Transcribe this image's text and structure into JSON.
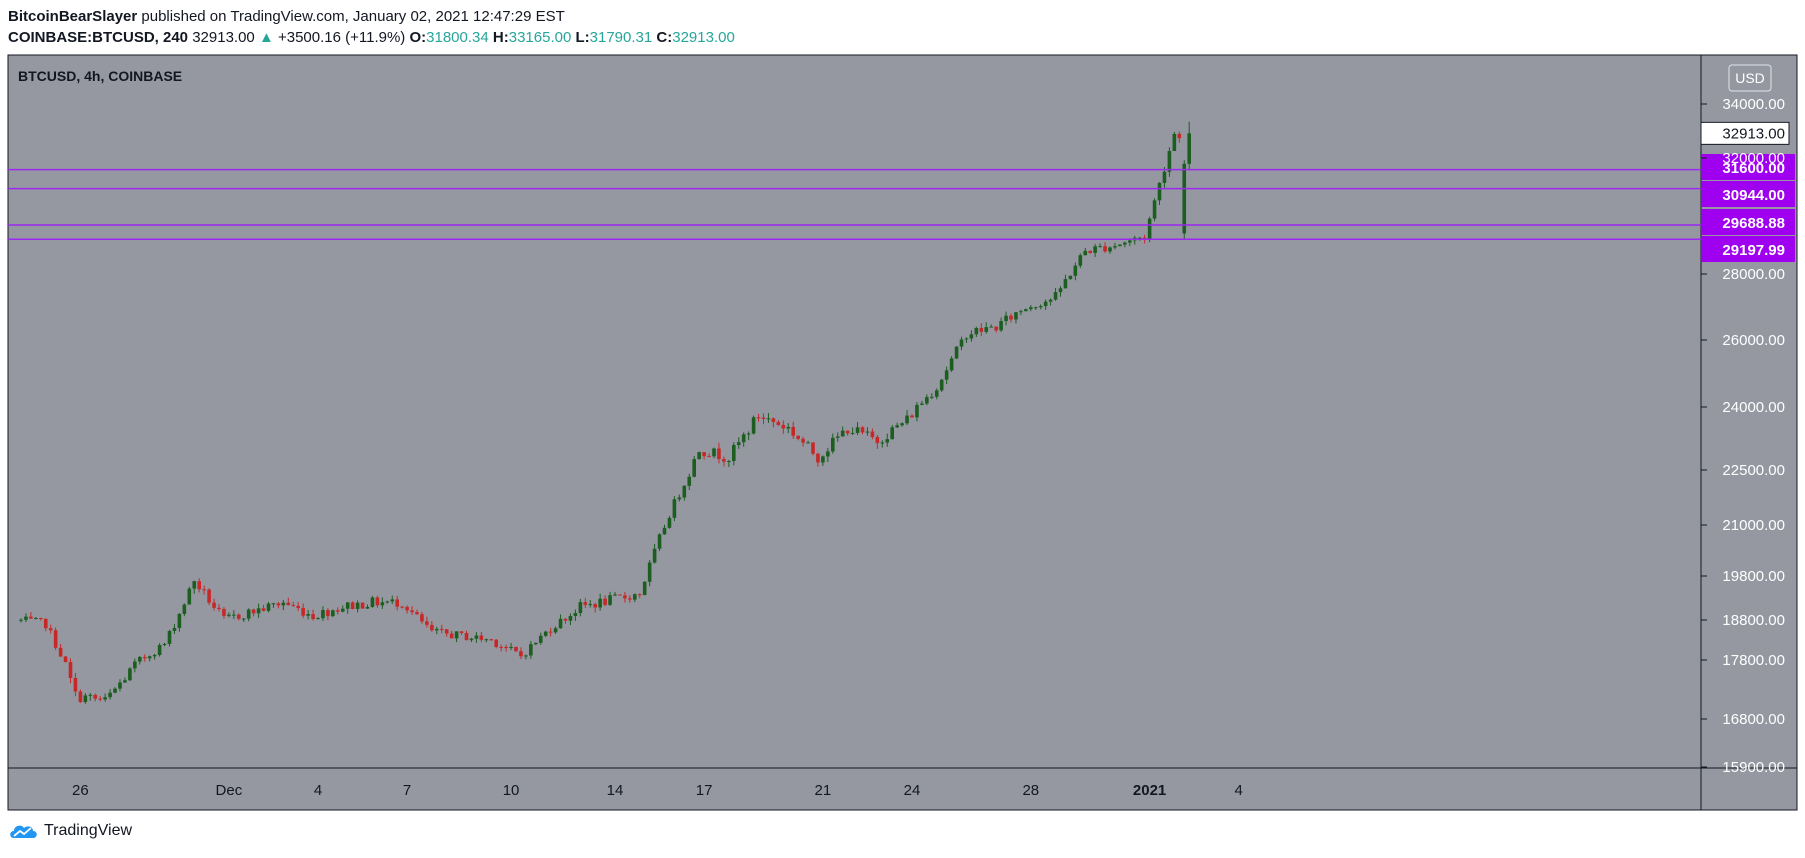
{
  "header": {
    "author": "BitcoinBearSlayer",
    "published_text": "published on TradingView.com, January 02, 2021 12:47:29 EST",
    "symbol": "COINBASE:BTCUSD, 240",
    "last_price": "32913.00",
    "change_arrow": "▲",
    "change": "+3500.16 (+11.9%)",
    "o_label": "O:",
    "o_value": "31800.34",
    "h_label": "H:",
    "h_value": "33165.00",
    "l_label": "L:",
    "l_value": "31790.31",
    "c_label": "C:",
    "c_value": "32913.00"
  },
  "chart_title": "BTCUSD, 4h, COINBASE",
  "currency_button": "USD",
  "colors": {
    "background": "#9598a1",
    "up_candle": "#1b5e20",
    "down_candle": "#c62828",
    "level_line": "#9c27f0",
    "level_label_bg": "#a000f0",
    "change_up": "#26a69a"
  },
  "chart_data": {
    "type": "candlestick",
    "title": "BTCUSD, 4h, COINBASE",
    "y_ticks": [
      "34000.00",
      "32000.00",
      "28000.00",
      "26000.00",
      "24000.00",
      "22500.00",
      "21000.00",
      "19800.00",
      "18800.00",
      "17800.00",
      "16800.00",
      "15900.00"
    ],
    "x_ticks": [
      "26",
      "Dec",
      "4",
      "7",
      "10",
      "14",
      "17",
      "21",
      "24",
      "28",
      "2021",
      "4"
    ],
    "last_price_label": "32913.00",
    "levels": [
      31600.0,
      30944.0,
      29688.88,
      29197.99
    ],
    "level_labels": [
      "31600.00",
      "30944.00",
      "29688.88",
      "29197.99"
    ],
    "daily_path": [
      [
        "Nov 24",
        18800
      ],
      [
        "Nov 25",
        18700
      ],
      [
        "Nov 26",
        17200
      ],
      [
        "Nov 27",
        17100
      ],
      [
        "Nov 28",
        17700
      ],
      [
        "Nov 29",
        18200
      ],
      [
        "Nov 30",
        19700
      ],
      [
        "Dec 01",
        18800
      ],
      [
        "Dec 02",
        19000
      ],
      [
        "Dec 03",
        19200
      ],
      [
        "Dec 04",
        18900
      ],
      [
        "Dec 05",
        19100
      ],
      [
        "Dec 06",
        19200
      ],
      [
        "Dec 07",
        19200
      ],
      [
        "Dec 08",
        18500
      ],
      [
        "Dec 09",
        18400
      ],
      [
        "Dec 10",
        18300
      ],
      [
        "Dec 11",
        17900
      ],
      [
        "Dec 12",
        18600
      ],
      [
        "Dec 13",
        19100
      ],
      [
        "Dec 14",
        19250
      ],
      [
        "Dec 15",
        19400
      ],
      [
        "Dec 16",
        21300
      ],
      [
        "Dec 17",
        23000
      ],
      [
        "Dec 18",
        22800
      ],
      [
        "Dec 19",
        23800
      ],
      [
        "Dec 20",
        23500
      ],
      [
        "Dec 21",
        22800
      ],
      [
        "Dec 22",
        23500
      ],
      [
        "Dec 23",
        23200
      ],
      [
        "Dec 24",
        23700
      ],
      [
        "Dec 25",
        24600
      ],
      [
        "Dec 26",
        26200
      ],
      [
        "Dec 27",
        26400
      ],
      [
        "Dec 28",
        27000
      ],
      [
        "Dec 29",
        27300
      ],
      [
        "Dec 30",
        28800
      ],
      [
        "Dec 31",
        29000
      ],
      [
        "Jan 01",
        29300
      ],
      [
        "Jan 02",
        32900
      ]
    ]
  }
}
